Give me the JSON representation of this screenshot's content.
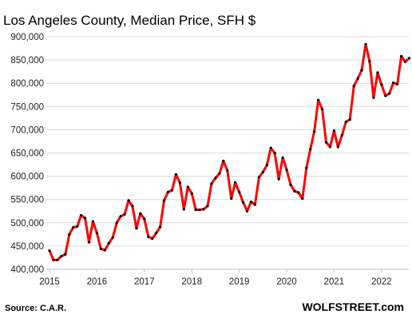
{
  "chart_data": {
    "type": "line",
    "title": "Los Angeles County, Median Price, SFH $",
    "xlabel": "",
    "ylabel": "",
    "ylim": [
      400000,
      900000
    ],
    "yticks": [
      "400,000",
      "450,000",
      "500,000",
      "550,000",
      "600,000",
      "650,000",
      "700,000",
      "750,000",
      "800,000",
      "850,000",
      "900,000"
    ],
    "xticks": [
      "2015",
      "2016",
      "2017",
      "2018",
      "2019",
      "2020",
      "2021",
      "2022"
    ],
    "grid": "horizontal",
    "line_color": "#ff0000",
    "marker_color": "#000000",
    "series": [
      {
        "x": [
          "2015-01",
          "2015-02",
          "2015-03",
          "2015-04",
          "2015-05",
          "2015-06",
          "2015-07",
          "2015-08",
          "2015-09",
          "2015-10",
          "2015-11",
          "2015-12",
          "2016-01",
          "2016-02",
          "2016-03",
          "2016-04",
          "2016-05",
          "2016-06",
          "2016-07",
          "2016-08",
          "2016-09",
          "2016-10",
          "2016-11",
          "2016-12",
          "2017-01",
          "2017-02",
          "2017-03",
          "2017-04",
          "2017-05",
          "2017-06",
          "2017-07",
          "2017-08",
          "2017-09",
          "2017-10",
          "2017-11",
          "2017-12",
          "2018-01",
          "2018-02",
          "2018-03",
          "2018-04",
          "2018-05",
          "2018-06",
          "2018-07",
          "2018-08",
          "2018-09",
          "2018-10",
          "2018-11",
          "2018-12",
          "2019-01",
          "2019-02",
          "2019-03",
          "2019-04",
          "2019-05",
          "2019-06",
          "2019-07",
          "2019-08",
          "2019-09",
          "2019-10",
          "2019-11",
          "2019-12",
          "2020-01",
          "2020-02",
          "2020-03",
          "2020-04",
          "2020-05",
          "2020-06",
          "2020-07",
          "2020-08",
          "2020-09",
          "2020-10",
          "2020-11",
          "2020-12",
          "2021-01",
          "2021-02",
          "2021-03",
          "2021-04",
          "2021-05",
          "2021-06",
          "2021-07",
          "2021-08",
          "2021-09",
          "2021-10",
          "2021-11",
          "2021-12",
          "2022-01",
          "2022-02",
          "2022-03",
          "2022-04",
          "2022-05",
          "2022-06",
          "2022-07",
          "2022-08"
        ],
        "values": [
          440000,
          420000,
          420000,
          428000,
          432000,
          475000,
          490000,
          492000,
          516000,
          510000,
          458000,
          503000,
          478000,
          444000,
          441000,
          456000,
          468000,
          500000,
          514000,
          518000,
          548000,
          536000,
          488000,
          520000,
          508000,
          470000,
          466000,
          478000,
          491000,
          548000,
          566000,
          570000,
          604000,
          586000,
          529000,
          577000,
          563000,
          528000,
          528000,
          529000,
          536000,
          584000,
          596000,
          606000,
          633000,
          612000,
          552000,
          587000,
          566000,
          544000,
          525000,
          545000,
          539000,
          598000,
          609000,
          624000,
          661000,
          650000,
          594000,
          640000,
          614000,
          582000,
          568000,
          565000,
          552000,
          618000,
          658000,
          696000,
          764000,
          744000,
          673000,
          663000,
          698000,
          663000,
          688000,
          717000,
          722000,
          794000,
          810000,
          828000,
          884000,
          847000,
          769000,
          823000,
          797000,
          773000,
          778000,
          801000,
          798000,
          858000,
          846000,
          854000
        ]
      }
    ],
    "source": "Source: C.A.R.",
    "brand": "WOLFSTREET.com"
  }
}
